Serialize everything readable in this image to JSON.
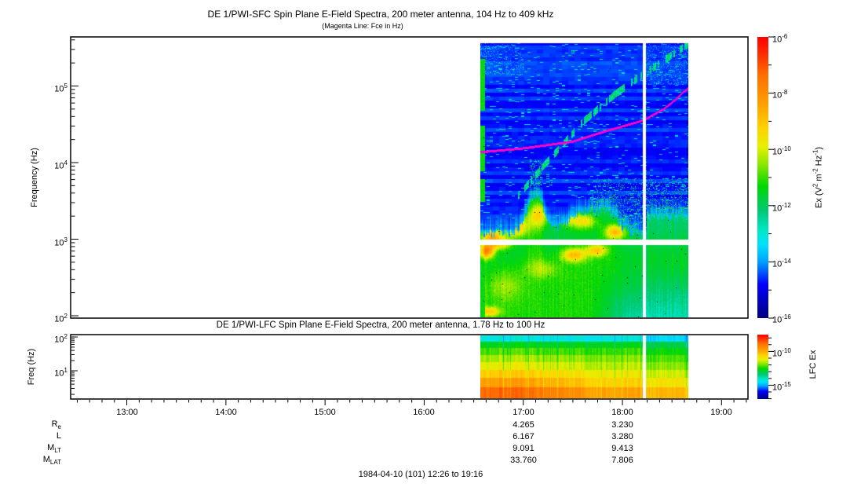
{
  "display": {
    "title_main": "DE 1/PWI-SFC  Spin Plane E-Field Spectra, 200 meter antenna, 104 Hz to 409 kHz",
    "title_sub": "(Magenta Line: Fce in Hz)",
    "title_lfc": "DE 1/PWI-LFC  Spin Plane E-Field Spectra, 200 meter antenna, 1.78 Hz to 100 Hz",
    "sfc": {
      "ylabel": "Frequency (Hz)",
      "yticks": [
        {
          "b": "10",
          "e": "5"
        },
        {
          "b": "10",
          "e": "4"
        },
        {
          "b": "10",
          "e": "3"
        },
        {
          "b": "10",
          "e": "2"
        }
      ],
      "cbar_ticks": [
        {
          "b": "10",
          "e": "-6"
        },
        {
          "b": "10",
          "e": "-8"
        },
        {
          "b": "10",
          "e": "-10"
        },
        {
          "b": "10",
          "e": "-12"
        },
        {
          "b": "10",
          "e": "-14"
        },
        {
          "b": "10",
          "e": "-16"
        }
      ],
      "cbar_label": {
        "p1": "Ex (V",
        "s1": "2",
        "p2": " m",
        "s2": "-2",
        "p3": " Hz",
        "s3": "-1",
        "p4": ")"
      }
    },
    "lfc": {
      "ylabel": "Freq (Hz)",
      "yticks": [
        {
          "b": "10",
          "e": "2"
        },
        {
          "b": "10",
          "e": "1"
        }
      ],
      "cbar_ticks": [
        {
          "b": "10",
          "e": "-10"
        },
        {
          "b": "10",
          "e": "-15"
        }
      ],
      "cbar_label": "LFC Ex"
    },
    "xticks": [
      "13:00",
      "14:00",
      "15:00",
      "16:00",
      "17:00",
      "18:00",
      "19:00"
    ],
    "ephemeris": {
      "rows": [
        {
          "label": "R",
          "sub": "e",
          "col1": "4.265",
          "col2": "3.230"
        },
        {
          "label": "L",
          "sub": "",
          "col1": "6.167",
          "col2": "3.280"
        },
        {
          "label": "M",
          "sub": "LT",
          "col1": "9.091",
          "col2": "9.413"
        },
        {
          "label": "M",
          "sub": "LAT",
          "col1": "33.760",
          "col2": "7.806"
        }
      ]
    },
    "caption": "1984-04-10 (101) 12:26 to 19:16"
  },
  "colors": {
    "background": "#FFFFFF",
    "frame": "#000000",
    "fce_line": "#FF00CC",
    "colormap": [
      [
        0,
        "#000080"
      ],
      [
        0.12,
        "#0000FF"
      ],
      [
        0.2,
        "#00A0FF"
      ],
      [
        0.26,
        "#00E0FF"
      ],
      [
        0.31,
        "#00E8C8"
      ],
      [
        0.38,
        "#00C878"
      ],
      [
        0.47,
        "#00D800"
      ],
      [
        0.55,
        "#90E800"
      ],
      [
        0.61,
        "#E8F000"
      ],
      [
        0.68,
        "#FFD000"
      ],
      [
        0.76,
        "#FFA000"
      ],
      [
        0.86,
        "#FF7000"
      ],
      [
        0.94,
        "#FF2A00"
      ],
      [
        1,
        "#FF0000"
      ]
    ]
  },
  "chart_data": [
    {
      "type": "heatmap",
      "panel": "SFC",
      "title": "DE 1/PWI-SFC  Spin Plane E-Field Spectra, 200 meter antenna, 104 Hz to 409 kHz",
      "subtitle": "(Magenta Line: Fce in Hz)",
      "ylabel": "Frequency (Hz)",
      "yscale": "log",
      "ylim_hz": [
        100,
        450000
      ],
      "yticks_hz": [
        100,
        1000,
        10000,
        100000
      ],
      "colorbar": {
        "label": "Ex (V^2 m^-2 Hz^-1)",
        "scale": "log",
        "range": [
          "1e-16",
          "1e-6"
        ],
        "labeled_ticks": [
          "1e-6",
          "1e-8",
          "1e-10",
          "1e-12",
          "1e-14",
          "1e-16"
        ]
      },
      "data_coverage": {
        "start": "16:34",
        "end": "18:40",
        "dropout_at": "18:13",
        "band_gap_hz": [
          880,
          1050
        ]
      },
      "fce_line_points": [
        [
          "16:34",
          13800
        ],
        [
          "17:00",
          15500
        ],
        [
          "17:30",
          19000
        ],
        [
          "17:50",
          26000
        ],
        [
          "18:05",
          32000
        ],
        [
          "18:13",
          36000
        ],
        [
          "18:25",
          50000
        ],
        [
          "18:33",
          68000
        ],
        [
          "18:40",
          95000
        ]
      ],
      "features": [
        "data present only from ~16:34 to ~18:40 UT; rest of panel blank",
        "white vertical data dropout near 18:13",
        "white horizontal instrument band gap just below 1 kHz",
        "magenta Fce line rises from ~14 kHz to ~95 kHz",
        "broadband green/yellow emission (~1e-12 to 1e-9 V2 m-2 Hz-1) below ~3 kHz with yellow-orange peaks near 16:40, 17:05, 17:35, 17:55",
        "faint narrowband streak rising from ~4 kHz near 16:50 to >100 kHz after 18:00",
        "dark blue background (~1e-15) above ~4 kHz"
      ]
    },
    {
      "type": "heatmap",
      "panel": "LFC",
      "title": "DE 1/PWI-LFC  Spin Plane E-Field Spectra, 200 meter antenna, 1.78 Hz to 100 Hz",
      "ylabel": "Freq (Hz)",
      "yscale": "log",
      "ylim_hz": [
        1.78,
        100
      ],
      "yticks_hz": [
        10,
        100
      ],
      "channel_band_edges_hz": [
        100,
        56,
        31.6,
        17.8,
        10,
        5.6,
        3.16,
        1.78
      ],
      "colorbar": {
        "label": "LFC Ex",
        "scale": "log",
        "labeled_ticks": [
          "1e-10",
          "1e-15"
        ]
      },
      "data_coverage": {
        "start": "16:34",
        "end": "18:40",
        "dropout_at": "18:13"
      },
      "features": [
        "banded spectrum: cyan at 100 Hz grading to yellow/orange (~1e-10) at lowest frequencies",
        "strongest low-frequency power (orange) before ~17:30, greener afterwards",
        "white vertical data dropout near 18:13"
      ]
    }
  ],
  "xaxis": {
    "start": "12:26",
    "end": "19:16",
    "ticks": [
      "13:00",
      "14:00",
      "15:00",
      "16:00",
      "17:00",
      "18:00",
      "19:00"
    ],
    "minor_tick_minutes": 7.5
  },
  "ephemeris_table": {
    "row_labels": [
      "Re",
      "L",
      "MLT",
      "MLAT"
    ],
    "columns": {
      "17:00": [
        4.265,
        6.167,
        9.091,
        33.76
      ],
      "18:00": [
        3.23,
        3.28,
        9.413,
        7.806
      ]
    }
  },
  "caption": "1984-04-10 (101) 12:26 to 19:16"
}
